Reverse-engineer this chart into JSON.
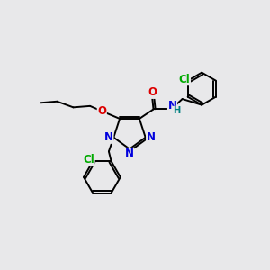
{
  "bg_color": "#e8e8ea",
  "atom_colors": {
    "C": "#000000",
    "N": "#0000dd",
    "O": "#dd0000",
    "Cl": "#00aa00",
    "H": "#008080"
  },
  "bond_color": "#000000",
  "font_size": 8.5,
  "lw": 1.4
}
